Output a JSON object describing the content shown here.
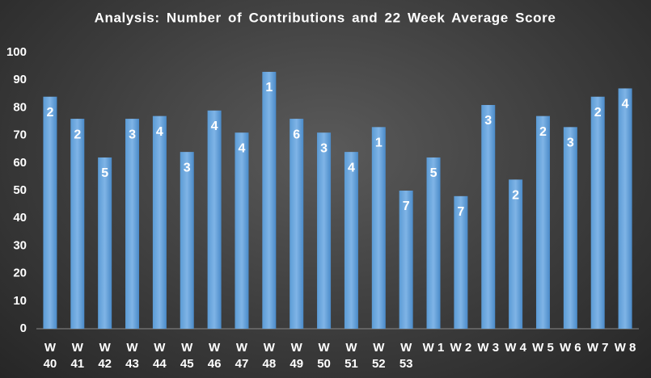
{
  "chart_data": {
    "type": "bar",
    "title": "Analysis:  Number of Contributions and 22 Week Average Score",
    "categories": [
      "W 40",
      "W 41",
      "W 42",
      "W 43",
      "W 44",
      "W 45",
      "W 46",
      "W 47",
      "W 48",
      "W 49",
      "W 50",
      "W 51",
      "W 52",
      "W 53",
      "W 1",
      "W 2",
      "W 3",
      "W 4",
      "W 5",
      "W 6",
      "W 7",
      "W 8"
    ],
    "values": [
      84,
      76,
      62,
      76,
      77,
      64,
      79,
      71,
      93,
      76,
      71,
      64,
      73,
      50,
      62,
      48,
      81,
      54,
      77,
      73,
      84,
      87
    ],
    "contributions": [
      2,
      2,
      5,
      3,
      4,
      3,
      4,
      4,
      1,
      6,
      3,
      4,
      1,
      7,
      5,
      7,
      3,
      2,
      2,
      3,
      2,
      4
    ],
    "color": "#5b9bd5",
    "ylim": [
      0,
      100
    ],
    "yticks": [
      0,
      10,
      20,
      30,
      40,
      50,
      60,
      70,
      80,
      90,
      100
    ],
    "grid": false
  }
}
